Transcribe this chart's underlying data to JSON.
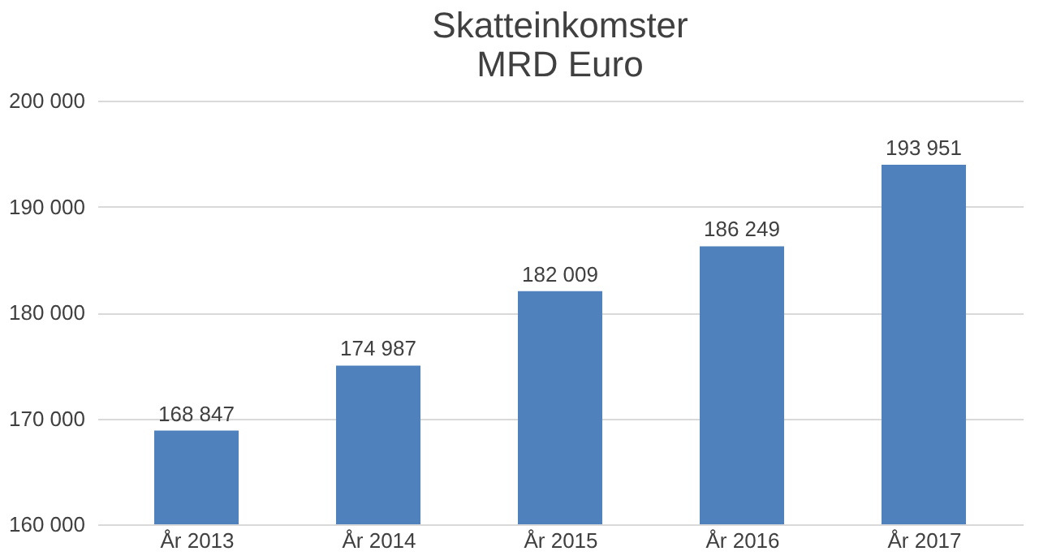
{
  "chart_data": {
    "type": "bar",
    "title": "Skatteinkomster",
    "subtitle": "MRD Euro",
    "categories": [
      "År 2013",
      "År 2014",
      "År 2015",
      "År 2016",
      "År 2017"
    ],
    "values": [
      168847,
      174987,
      182009,
      186249,
      193951
    ],
    "value_labels": [
      "168 847",
      "174 987",
      "182 009",
      "186 249",
      "193 951"
    ],
    "color": "#4f81bd",
    "ylim": [
      160000,
      200000
    ],
    "yticks": [
      {
        "value": 160000,
        "label": "160 000"
      },
      {
        "value": 170000,
        "label": "170 000"
      },
      {
        "value": 180000,
        "label": "180 000"
      },
      {
        "value": 190000,
        "label": "190 000"
      },
      {
        "value": 200000,
        "label": "200 000"
      }
    ],
    "grid": "y"
  }
}
